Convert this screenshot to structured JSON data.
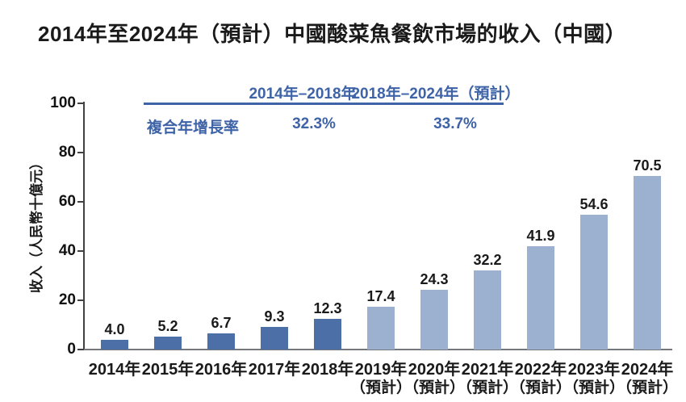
{
  "title": "2014年至2024年（預計）中國酸菜魚餐飲市場的收入（中國）",
  "cagr_table": {
    "row_label": "複合年增長率",
    "columns": [
      {
        "period": "2014年–2018年",
        "value": "32.3%"
      },
      {
        "period": "2018年–2024年（預計）",
        "value": "33.7%"
      }
    ],
    "accent_color": "#3e63a7"
  },
  "chart_data": {
    "type": "bar",
    "title": "2014年至2024年（預計）中國酸菜魚餐飲市場的收入（中國）",
    "ylabel": "收入（人民幣十億元）",
    "xlabel": "",
    "ylim": [
      0,
      100
    ],
    "yticks": [
      0,
      20,
      40,
      60,
      80,
      100
    ],
    "grid": false,
    "legend": "none",
    "categories": [
      "2014年",
      "2015年",
      "2016年",
      "2017年",
      "2018年",
      "2019年",
      "2020年",
      "2021年",
      "2022年",
      "2023年",
      "2024年"
    ],
    "sublabels": [
      "",
      "",
      "",
      "",
      "",
      "（預計）",
      "（預計）",
      "（預計）",
      "（預計）",
      "（預計）",
      "（預計）"
    ],
    "values": [
      4.0,
      5.2,
      6.7,
      9.3,
      12.3,
      17.4,
      24.3,
      32.2,
      41.9,
      54.6,
      70.5
    ],
    "value_labels": [
      "4.0",
      "5.2",
      "6.7",
      "9.3",
      "12.3",
      "17.4",
      "24.3",
      "32.2",
      "41.9",
      "54.6",
      "70.5"
    ],
    "segment_types": [
      "actual",
      "actual",
      "actual",
      "actual",
      "actual",
      "forecast",
      "forecast",
      "forecast",
      "forecast",
      "forecast",
      "forecast"
    ],
    "colors": {
      "actual": "#4b6fa6",
      "forecast": "#9cb0d0"
    }
  }
}
